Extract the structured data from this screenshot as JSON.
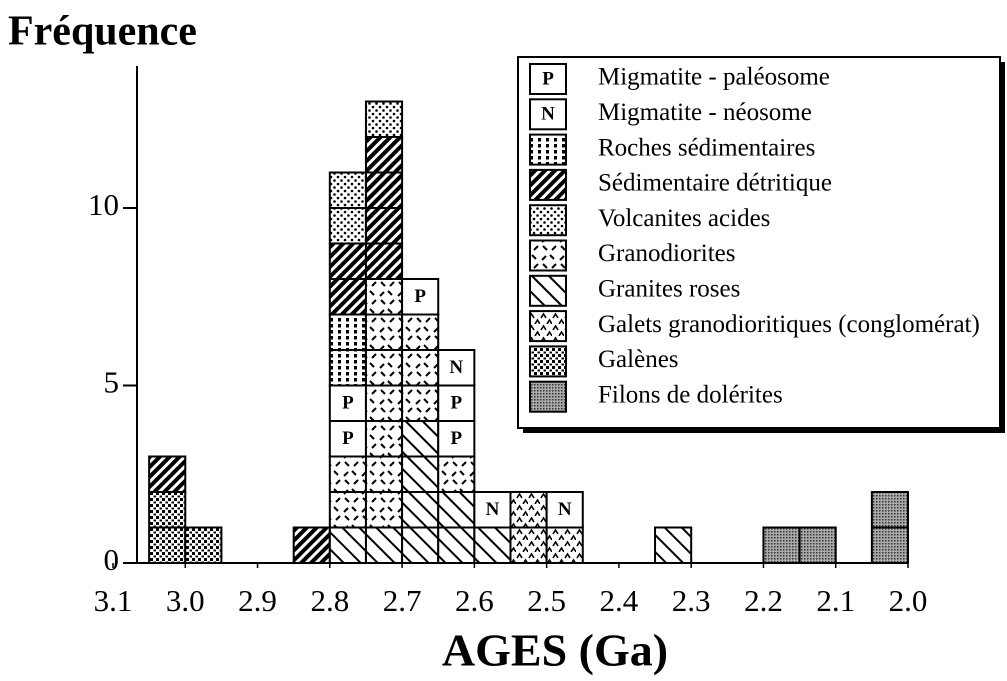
{
  "chart_data": {
    "type": "histogram",
    "ylabel": "Fréquence",
    "xlabel": "AGES (Ga)",
    "bins": [
      3.05,
      3.0,
      2.95,
      2.9,
      2.85,
      2.8,
      2.75,
      2.7,
      2.65,
      2.6,
      2.55,
      2.5,
      2.45,
      2.4,
      2.35,
      2.3,
      2.25,
      2.2,
      2.15,
      2.1,
      2.05,
      2.0
    ],
    "series": [
      {
        "name": "Migmatite - paléosome",
        "symbol": "P",
        "color": "#000000",
        "values": [
          0,
          0,
          0,
          0,
          0,
          2,
          0,
          1,
          2,
          0,
          0,
          0,
          0,
          0,
          0,
          0,
          0,
          0,
          0,
          0,
          0
        ]
      },
      {
        "name": "Migmatite - néosome",
        "symbol": "N",
        "color": "#000000",
        "values": [
          0,
          0,
          0,
          0,
          0,
          0,
          0,
          0,
          1,
          1,
          0,
          1,
          0,
          0,
          0,
          0,
          0,
          0,
          0,
          0,
          0
        ]
      },
      {
        "name": "Roches sédimentaires",
        "color": "#000000",
        "values": [
          0,
          0,
          0,
          0,
          0,
          2,
          0,
          0,
          0,
          0,
          0,
          0,
          0,
          0,
          0,
          0,
          0,
          0,
          0,
          0,
          0
        ]
      },
      {
        "name": "Sédimentaire détritique",
        "color": "#000000",
        "values": [
          1,
          0,
          0,
          0,
          1,
          2,
          4,
          0,
          0,
          0,
          0,
          0,
          0,
          0,
          0,
          0,
          0,
          0,
          0,
          0,
          0
        ]
      },
      {
        "name": "Volcanites acides",
        "color": "#000000",
        "values": [
          0,
          0,
          0,
          0,
          0,
          2,
          1,
          0,
          0,
          0,
          0,
          0,
          0,
          0,
          0,
          0,
          0,
          0,
          0,
          0,
          0
        ]
      },
      {
        "name": "Granodiorites",
        "color": "#000000",
        "values": [
          0,
          0,
          0,
          0,
          0,
          2,
          7,
          3,
          1,
          0,
          0,
          0,
          0,
          0,
          0,
          0,
          0,
          0,
          0,
          0,
          0
        ]
      },
      {
        "name": "Granites roses",
        "color": "#000000",
        "values": [
          0,
          0,
          0,
          0,
          0,
          1,
          1,
          4,
          2,
          1,
          0,
          0,
          0,
          0,
          1,
          0,
          0,
          0,
          0,
          0,
          0
        ]
      },
      {
        "name": "Galets granodioritiques (conglomérat)",
        "color": "#000000",
        "values": [
          0,
          0,
          0,
          0,
          0,
          0,
          0,
          0,
          0,
          0,
          2,
          1,
          0,
          0,
          0,
          0,
          0,
          0,
          0,
          0,
          0
        ]
      },
      {
        "name": "Galènes",
        "color": "#000000",
        "values": [
          2,
          1,
          0,
          0,
          0,
          0,
          0,
          0,
          0,
          0,
          0,
          0,
          0,
          0,
          0,
          0,
          0,
          0,
          0,
          0,
          0
        ]
      },
      {
        "name": "Filons de dolérites",
        "color": "#000000",
        "values": [
          0,
          0,
          0,
          0,
          0,
          0,
          0,
          0,
          0,
          0,
          0,
          0,
          0,
          0,
          0,
          0,
          0,
          1,
          1,
          0,
          2
        ]
      }
    ],
    "xlim": [
      3.1,
      2.0
    ],
    "xticks": [
      3.1,
      {
        "value": 3,
        "label": "3.0"
      },
      2.9,
      2.8,
      2.7,
      2.6,
      2.5,
      2.4,
      2.3,
      2.2,
      2.1,
      {
        "value": 2,
        "label": "2.0"
      }
    ],
    "ylim": [
      0,
      14
    ],
    "yticks": [
      0,
      5,
      10
    ],
    "legend": "upper right"
  }
}
